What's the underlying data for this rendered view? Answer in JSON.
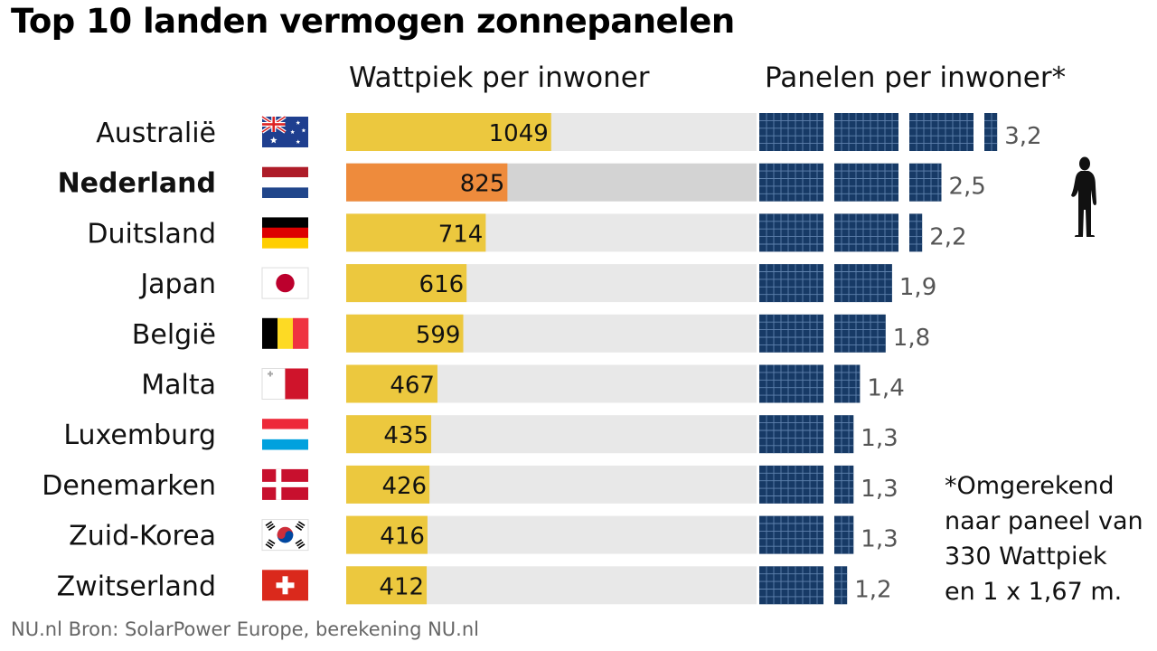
{
  "title": "Top 10 landen vermogen zonnepanelen",
  "footnote": [
    "*Omgerekend",
    "naar paneel van",
    "330 Wattpiek",
    "en 1 x 1,67 m."
  ],
  "source": "NU.nl Bron: SolarPower Europe, berekening NU.nl",
  "colors": {
    "bar_default": "#ecc83e",
    "bar_highlight": "#ee8b3c",
    "track_default": "#e8e8e8",
    "track_highlight": "#d3d3d3",
    "panel_fill": "#173a66",
    "panel_grid": "#5f82ad",
    "panel_label": "#555555"
  },
  "highlight_country": "Nederland",
  "chart_data": {
    "type": "bar",
    "categories": [
      "Australië",
      "Nederland",
      "Duitsland",
      "Japan",
      "België",
      "Malta",
      "Luxemburg",
      "Denemarken",
      "Zuid-Korea",
      "Zwitserland"
    ],
    "flag_icons": [
      "flag-australia-icon",
      "flag-netherlands-icon",
      "flag-germany-icon",
      "flag-japan-icon",
      "flag-belgium-icon",
      "flag-malta-icon",
      "flag-luxembourg-icon",
      "flag-denmark-icon",
      "flag-south-korea-icon",
      "flag-switzerland-icon"
    ],
    "series": [
      {
        "name": "Wattpiek per inwoner",
        "values": [
          1049,
          825,
          714,
          616,
          599,
          467,
          435,
          426,
          416,
          412
        ],
        "xlim": [
          0,
          2100
        ]
      },
      {
        "name": "Panelen per inwoner*",
        "values": [
          3.2,
          2.5,
          2.2,
          1.9,
          1.8,
          1.4,
          1.3,
          1.3,
          1.3,
          1.2
        ],
        "labels": [
          "3,2",
          "2,5",
          "2,2",
          "1,9",
          "1,8",
          "1,4",
          "1,3",
          "1,3",
          "1,3",
          "1,2"
        ],
        "icon": "solar-panel-icon"
      }
    ],
    "annotation_icon": "person-silhouette-icon"
  }
}
